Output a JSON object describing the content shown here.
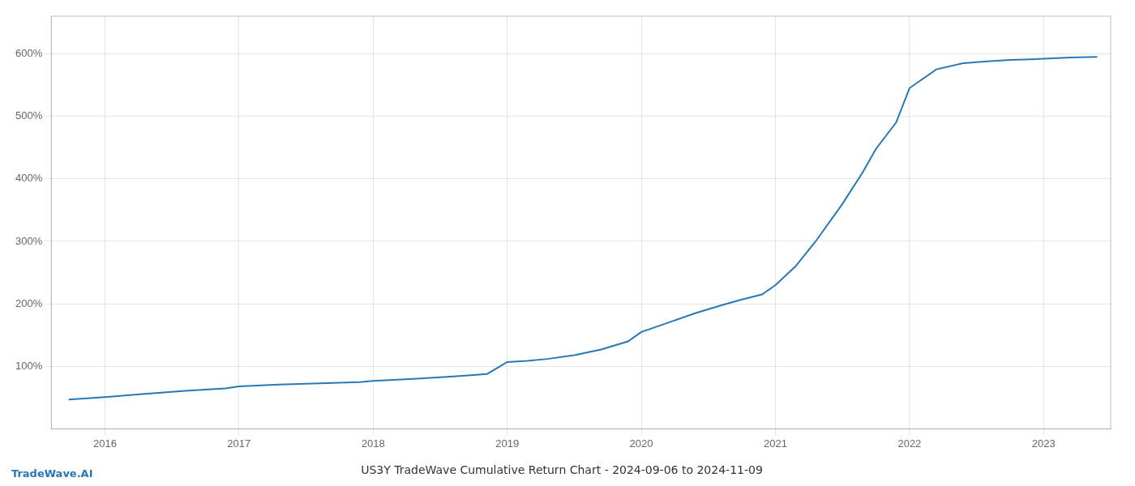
{
  "chart_data": {
    "type": "line",
    "title": "US3Y TradeWave Cumulative Return Chart - 2024-09-06 to 2024-11-09",
    "annotations": [
      "TradeWave.AI"
    ],
    "x": [
      2015.73,
      2016.0,
      2016.3,
      2016.6,
      2016.9,
      2017.0,
      2017.3,
      2017.6,
      2017.9,
      2018.0,
      2018.3,
      2018.6,
      2018.85,
      2019.0,
      2019.15,
      2019.3,
      2019.5,
      2019.7,
      2019.9,
      2020.0,
      2020.2,
      2020.4,
      2020.6,
      2020.75,
      2020.9,
      2021.0,
      2021.15,
      2021.3,
      2021.5,
      2021.65,
      2021.75,
      2021.9,
      2022.0,
      2022.2,
      2022.4,
      2022.6,
      2022.75,
      2022.9,
      2023.0,
      2023.2,
      2023.4
    ],
    "values": [
      47,
      51,
      56,
      61,
      65,
      68,
      71,
      73,
      75,
      77,
      80,
      84,
      88,
      107,
      109,
      112,
      118,
      127,
      140,
      155,
      170,
      185,
      198,
      207,
      215,
      230,
      260,
      300,
      360,
      410,
      448,
      490,
      545,
      575,
      585,
      588,
      590,
      591,
      592,
      594,
      595
    ],
    "color": "#2878b8",
    "xlim": [
      2015.6,
      2023.5
    ],
    "ylim": [
      0,
      660
    ],
    "xticks": [
      2016,
      2017,
      2018,
      2019,
      2020,
      2021,
      2022,
      2023
    ],
    "yticks": [
      {
        "value": 100,
        "label": "100%"
      },
      {
        "value": 200,
        "label": "200%"
      },
      {
        "value": 300,
        "label": "300%"
      },
      {
        "value": 400,
        "label": "400%"
      },
      {
        "value": 500,
        "label": "500%"
      },
      {
        "value": 600,
        "label": "600%"
      }
    ],
    "grid": true
  }
}
